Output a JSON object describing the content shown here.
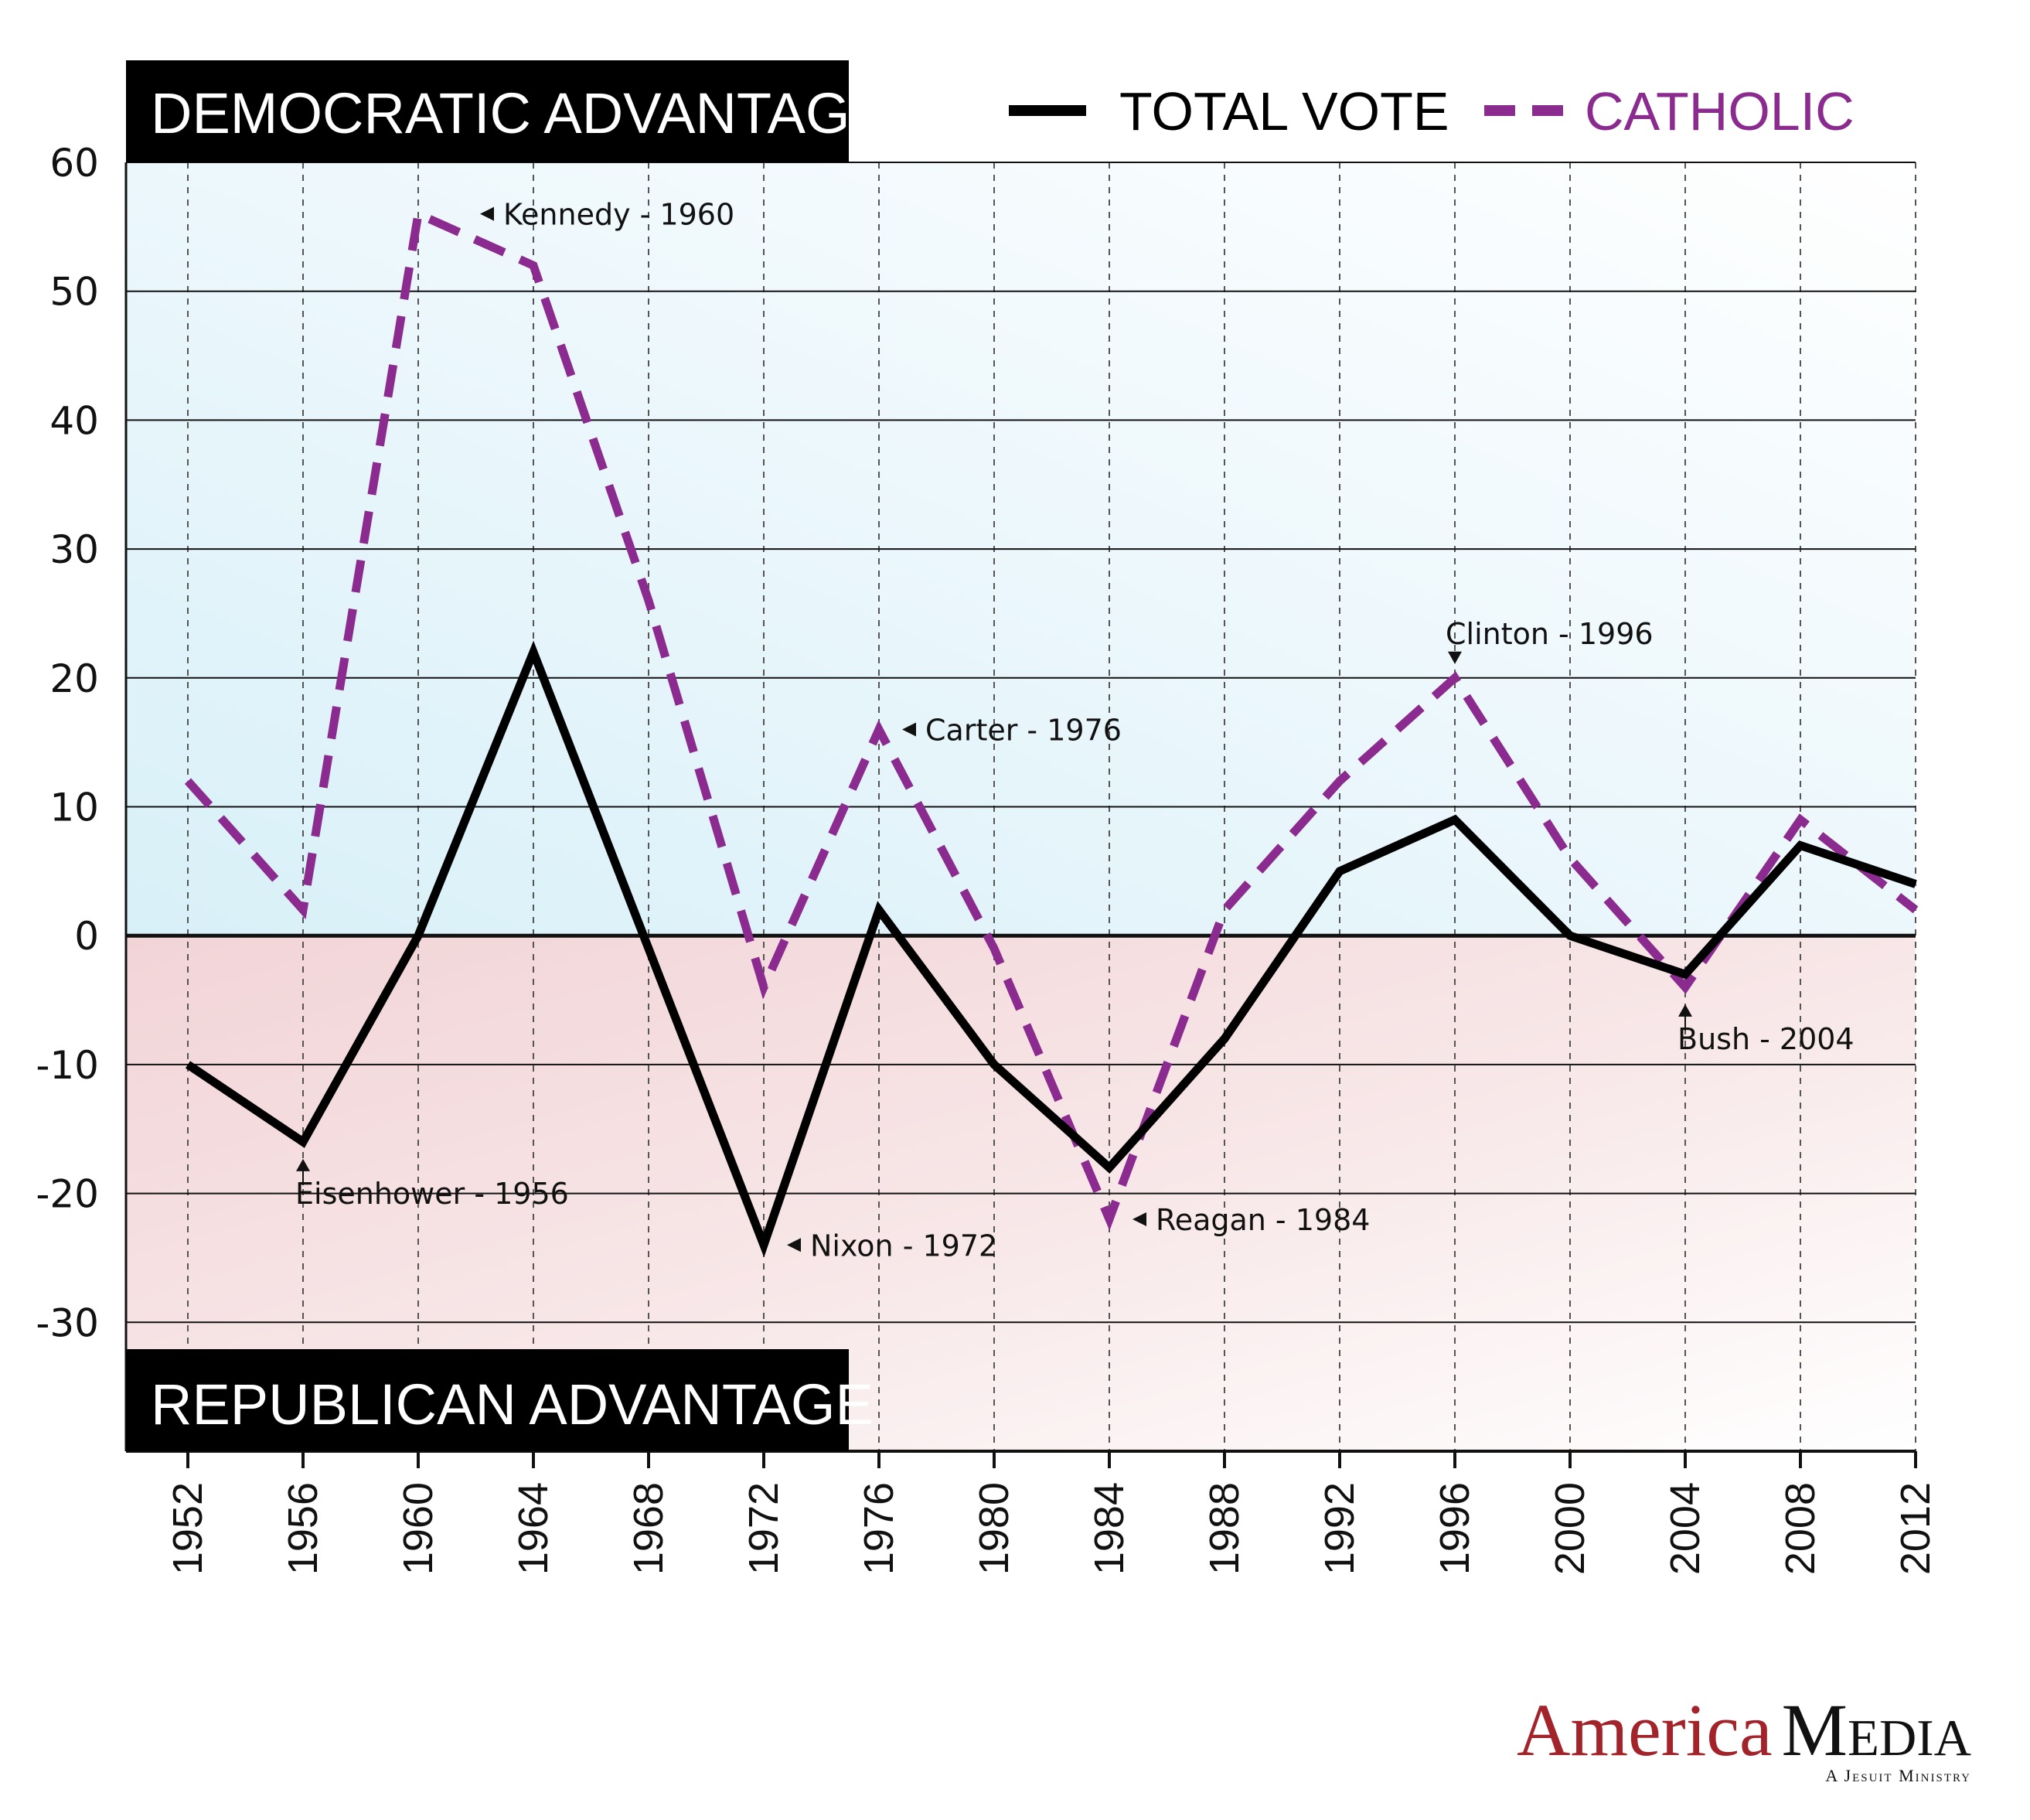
{
  "banners": {
    "top": "DEMOCRATIC ADVANTAGE",
    "bottom": "REPUBLICAN ADVANTAGE"
  },
  "brand": {
    "name_part1": "America",
    "name_part2": "Media",
    "tagline": "A Jesuit Ministry",
    "color_primary": "#a3232b"
  },
  "colors": {
    "total": "#000000",
    "catholic": "#8b2a8f",
    "dem_bg": "#d8f0f8",
    "rep_bg": "#f3d6d8"
  },
  "chart_data": {
    "type": "line",
    "x": [
      1952,
      1956,
      1960,
      1964,
      1968,
      1972,
      1976,
      1980,
      1984,
      1988,
      1992,
      1996,
      2000,
      2004,
      2008,
      2012
    ],
    "ylim": [
      -40,
      60
    ],
    "yticks": [
      60,
      50,
      40,
      30,
      20,
      10,
      0,
      -10,
      -20,
      -30
    ],
    "grid": true,
    "legend_position": "top-right",
    "series": [
      {
        "name": "TOTAL VOTE",
        "key": "total",
        "style": "solid",
        "values": [
          -10,
          -16,
          0,
          22,
          -1,
          -24,
          2,
          -10,
          -18,
          -8,
          5,
          9,
          0,
          -3,
          7,
          4
        ]
      },
      {
        "name": "CATHOLIC",
        "key": "catholic",
        "style": "dashed",
        "values": [
          12,
          2,
          56,
          52,
          26,
          -4,
          16,
          -1,
          -22,
          2,
          12,
          20,
          6,
          -4,
          9,
          2
        ]
      }
    ],
    "annotations": [
      {
        "text": "Kennedy - 1960",
        "x": 1960,
        "y": 56,
        "pointer": "left"
      },
      {
        "text": "Carter - 1976",
        "x": 1976,
        "y": 16,
        "pointer": "left"
      },
      {
        "text": "Clinton - 1996",
        "x": 1996,
        "y": 20,
        "pointer": "down"
      },
      {
        "text": "Eisenhower - 1956",
        "x": 1956,
        "y": -16,
        "pointer": "up"
      },
      {
        "text": "Nixon - 1972",
        "x": 1972,
        "y": -24,
        "pointer": "left"
      },
      {
        "text": "Reagan - 1984",
        "x": 1984,
        "y": -22,
        "pointer": "left"
      },
      {
        "text": "Bush - 2004",
        "x": 2004,
        "y": -4,
        "pointer": "up"
      }
    ]
  }
}
